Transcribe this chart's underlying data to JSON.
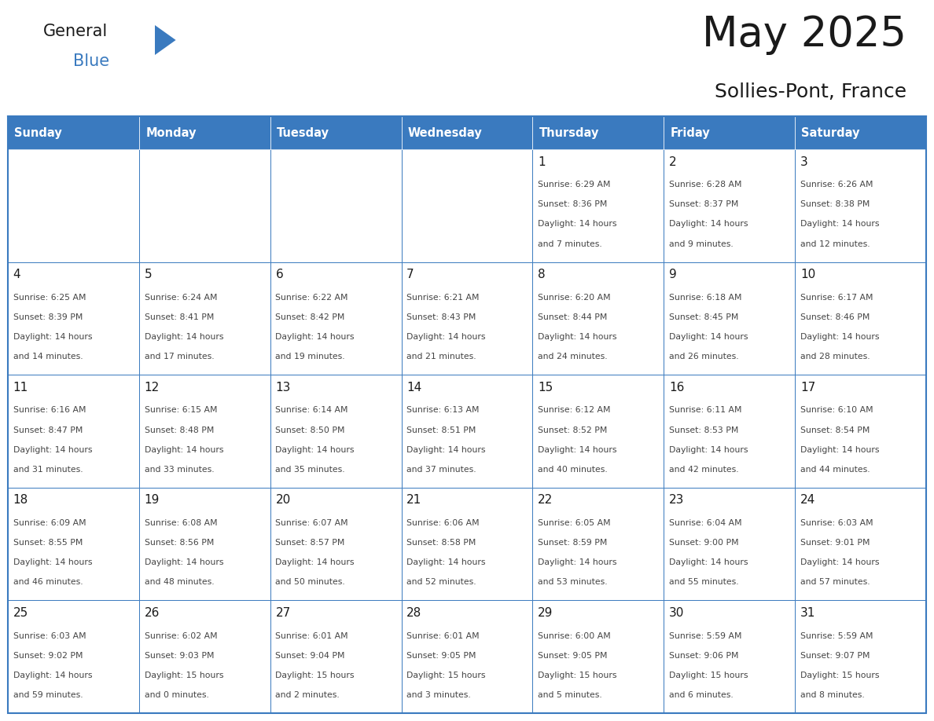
{
  "title": "May 2025",
  "subtitle": "Sollies-Pont, France",
  "header_bg_color": "#3a7abf",
  "header_text_color": "#ffffff",
  "border_color": "#3a7abf",
  "day_names": [
    "Sunday",
    "Monday",
    "Tuesday",
    "Wednesday",
    "Thursday",
    "Friday",
    "Saturday"
  ],
  "title_color": "#1a1a1a",
  "subtitle_color": "#1a1a1a",
  "text_color": "#444444",
  "day_number_color": "#1a1a1a",
  "logo_general_color": "#1a1a1a",
  "logo_blue_color": "#3a7abf",
  "logo_triangle_color": "#3a7abf",
  "weeks": [
    [
      {
        "day": "",
        "sunrise": "",
        "sunset": "",
        "daylight_h": "",
        "daylight_m": ""
      },
      {
        "day": "",
        "sunrise": "",
        "sunset": "",
        "daylight_h": "",
        "daylight_m": ""
      },
      {
        "day": "",
        "sunrise": "",
        "sunset": "",
        "daylight_h": "",
        "daylight_m": ""
      },
      {
        "day": "",
        "sunrise": "",
        "sunset": "",
        "daylight_h": "",
        "daylight_m": ""
      },
      {
        "day": "1",
        "sunrise": "6:29 AM",
        "sunset": "8:36 PM",
        "daylight_h": "14",
        "daylight_m": "7"
      },
      {
        "day": "2",
        "sunrise": "6:28 AM",
        "sunset": "8:37 PM",
        "daylight_h": "14",
        "daylight_m": "9"
      },
      {
        "day": "3",
        "sunrise": "6:26 AM",
        "sunset": "8:38 PM",
        "daylight_h": "14",
        "daylight_m": "12"
      }
    ],
    [
      {
        "day": "4",
        "sunrise": "6:25 AM",
        "sunset": "8:39 PM",
        "daylight_h": "14",
        "daylight_m": "14"
      },
      {
        "day": "5",
        "sunrise": "6:24 AM",
        "sunset": "8:41 PM",
        "daylight_h": "14",
        "daylight_m": "17"
      },
      {
        "day": "6",
        "sunrise": "6:22 AM",
        "sunset": "8:42 PM",
        "daylight_h": "14",
        "daylight_m": "19"
      },
      {
        "day": "7",
        "sunrise": "6:21 AM",
        "sunset": "8:43 PM",
        "daylight_h": "14",
        "daylight_m": "21"
      },
      {
        "day": "8",
        "sunrise": "6:20 AM",
        "sunset": "8:44 PM",
        "daylight_h": "14",
        "daylight_m": "24"
      },
      {
        "day": "9",
        "sunrise": "6:18 AM",
        "sunset": "8:45 PM",
        "daylight_h": "14",
        "daylight_m": "26"
      },
      {
        "day": "10",
        "sunrise": "6:17 AM",
        "sunset": "8:46 PM",
        "daylight_h": "14",
        "daylight_m": "28"
      }
    ],
    [
      {
        "day": "11",
        "sunrise": "6:16 AM",
        "sunset": "8:47 PM",
        "daylight_h": "14",
        "daylight_m": "31"
      },
      {
        "day": "12",
        "sunrise": "6:15 AM",
        "sunset": "8:48 PM",
        "daylight_h": "14",
        "daylight_m": "33"
      },
      {
        "day": "13",
        "sunrise": "6:14 AM",
        "sunset": "8:50 PM",
        "daylight_h": "14",
        "daylight_m": "35"
      },
      {
        "day": "14",
        "sunrise": "6:13 AM",
        "sunset": "8:51 PM",
        "daylight_h": "14",
        "daylight_m": "37"
      },
      {
        "day": "15",
        "sunrise": "6:12 AM",
        "sunset": "8:52 PM",
        "daylight_h": "14",
        "daylight_m": "40"
      },
      {
        "day": "16",
        "sunrise": "6:11 AM",
        "sunset": "8:53 PM",
        "daylight_h": "14",
        "daylight_m": "42"
      },
      {
        "day": "17",
        "sunrise": "6:10 AM",
        "sunset": "8:54 PM",
        "daylight_h": "14",
        "daylight_m": "44"
      }
    ],
    [
      {
        "day": "18",
        "sunrise": "6:09 AM",
        "sunset": "8:55 PM",
        "daylight_h": "14",
        "daylight_m": "46"
      },
      {
        "day": "19",
        "sunrise": "6:08 AM",
        "sunset": "8:56 PM",
        "daylight_h": "14",
        "daylight_m": "48"
      },
      {
        "day": "20",
        "sunrise": "6:07 AM",
        "sunset": "8:57 PM",
        "daylight_h": "14",
        "daylight_m": "50"
      },
      {
        "day": "21",
        "sunrise": "6:06 AM",
        "sunset": "8:58 PM",
        "daylight_h": "14",
        "daylight_m": "52"
      },
      {
        "day": "22",
        "sunrise": "6:05 AM",
        "sunset": "8:59 PM",
        "daylight_h": "14",
        "daylight_m": "53"
      },
      {
        "day": "23",
        "sunrise": "6:04 AM",
        "sunset": "9:00 PM",
        "daylight_h": "14",
        "daylight_m": "55"
      },
      {
        "day": "24",
        "sunrise": "6:03 AM",
        "sunset": "9:01 PM",
        "daylight_h": "14",
        "daylight_m": "57"
      }
    ],
    [
      {
        "day": "25",
        "sunrise": "6:03 AM",
        "sunset": "9:02 PM",
        "daylight_h": "14",
        "daylight_m": "59"
      },
      {
        "day": "26",
        "sunrise": "6:02 AM",
        "sunset": "9:03 PM",
        "daylight_h": "15",
        "daylight_m": "0"
      },
      {
        "day": "27",
        "sunrise": "6:01 AM",
        "sunset": "9:04 PM",
        "daylight_h": "15",
        "daylight_m": "2"
      },
      {
        "day": "28",
        "sunrise": "6:01 AM",
        "sunset": "9:05 PM",
        "daylight_h": "15",
        "daylight_m": "3"
      },
      {
        "day": "29",
        "sunrise": "6:00 AM",
        "sunset": "9:05 PM",
        "daylight_h": "15",
        "daylight_m": "5"
      },
      {
        "day": "30",
        "sunrise": "5:59 AM",
        "sunset": "9:06 PM",
        "daylight_h": "15",
        "daylight_m": "6"
      },
      {
        "day": "31",
        "sunrise": "5:59 AM",
        "sunset": "9:07 PM",
        "daylight_h": "15",
        "daylight_m": "8"
      }
    ]
  ]
}
